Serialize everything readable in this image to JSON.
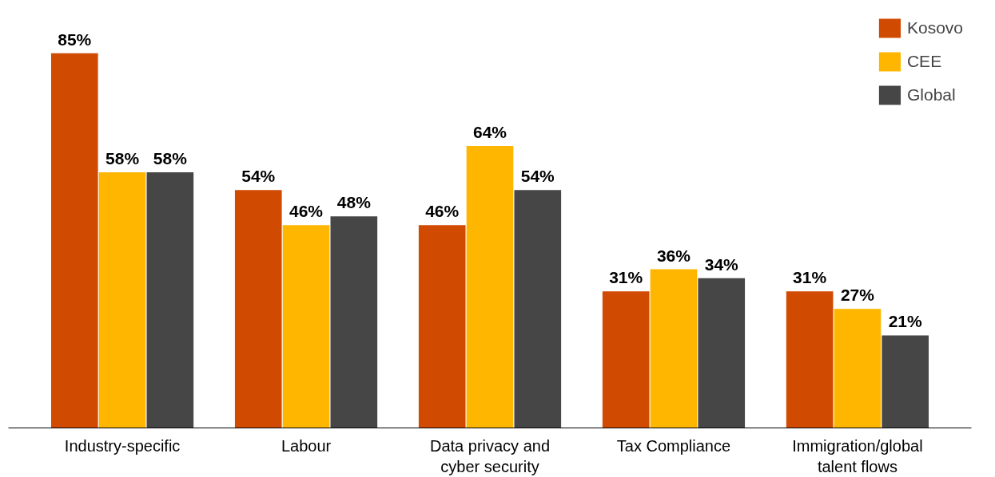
{
  "chart_data": {
    "type": "bar",
    "categories": [
      "Industry-specific",
      "Labour",
      "Data privacy and\ncyber security",
      "Tax Compliance",
      "Immigration/global\ntalent flows"
    ],
    "series": [
      {
        "name": "Kosovo",
        "color": "#d04a02",
        "values": [
          85,
          54,
          46,
          31,
          31
        ],
        "value_labels": [
          "85%",
          "54%",
          "46%",
          "31%",
          "31%"
        ]
      },
      {
        "name": "CEE",
        "color": "#ffb600",
        "values": [
          58,
          46,
          64,
          36,
          27
        ],
        "value_labels": [
          "58%",
          "46%",
          "64%",
          "36%",
          "27%"
        ]
      },
      {
        "name": "Global",
        "color": "#464646",
        "values": [
          58,
          48,
          54,
          34,
          21
        ],
        "value_labels": [
          "58%",
          "48%",
          "54%",
          "34%",
          "21%"
        ]
      }
    ],
    "legend": "top right",
    "grid": false
  }
}
